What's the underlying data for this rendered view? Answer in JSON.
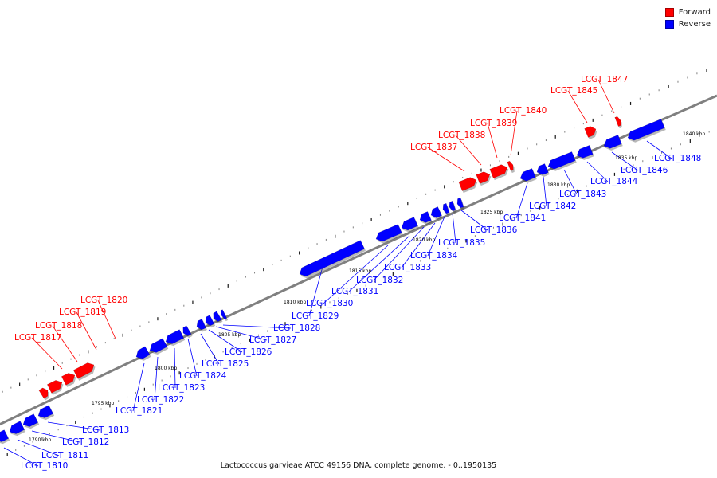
{
  "caption": "Lactococcus garvieae ATCC 49156 DNA, complete genome. - 0..1950135",
  "legend": [
    {
      "label": "Forward",
      "color": "#ff0000"
    },
    {
      "label": "Reverse",
      "color": "#0000ff"
    }
  ],
  "colors": {
    "forward": "#ff0000",
    "reverse": "#0000ff",
    "backbone": "#808080",
    "tick": "#000000"
  },
  "tick_labels": [
    "1790 kbp",
    "1795 kbp",
    "1800 kbp",
    "1805 kbp",
    "1810 kbp",
    "1815 kbp",
    "1820 kbp",
    "1825 kbp",
    "1830 kbp",
    "1835 kbp",
    "1840 kbp"
  ],
  "genes": [
    {
      "id": "LCGT_1810",
      "strand": "reverse"
    },
    {
      "id": "LCGT_1811",
      "strand": "reverse"
    },
    {
      "id": "LCGT_1812",
      "strand": "reverse"
    },
    {
      "id": "LCGT_1813",
      "strand": "reverse"
    },
    {
      "id": "LCGT_1817",
      "strand": "forward"
    },
    {
      "id": "LCGT_1818",
      "strand": "forward"
    },
    {
      "id": "LCGT_1819",
      "strand": "forward"
    },
    {
      "id": "LCGT_1820",
      "strand": "forward"
    },
    {
      "id": "LCGT_1821",
      "strand": "reverse"
    },
    {
      "id": "LCGT_1822",
      "strand": "reverse"
    },
    {
      "id": "LCGT_1823",
      "strand": "reverse"
    },
    {
      "id": "LCGT_1824",
      "strand": "reverse"
    },
    {
      "id": "LCGT_1825",
      "strand": "reverse"
    },
    {
      "id": "LCGT_1826",
      "strand": "reverse"
    },
    {
      "id": "LCGT_1827",
      "strand": "reverse"
    },
    {
      "id": "LCGT_1828",
      "strand": "reverse"
    },
    {
      "id": "LCGT_1829",
      "strand": "reverse"
    },
    {
      "id": "LCGT_1830",
      "strand": "reverse"
    },
    {
      "id": "LCGT_1831",
      "strand": "reverse"
    },
    {
      "id": "LCGT_1832",
      "strand": "reverse"
    },
    {
      "id": "LCGT_1833",
      "strand": "reverse"
    },
    {
      "id": "LCGT_1834",
      "strand": "reverse"
    },
    {
      "id": "LCGT_1835",
      "strand": "reverse"
    },
    {
      "id": "LCGT_1836",
      "strand": "reverse"
    },
    {
      "id": "LCGT_1837",
      "strand": "forward"
    },
    {
      "id": "LCGT_1838",
      "strand": "forward"
    },
    {
      "id": "LCGT_1839",
      "strand": "forward"
    },
    {
      "id": "LCGT_1840",
      "strand": "forward"
    },
    {
      "id": "LCGT_1841",
      "strand": "reverse"
    },
    {
      "id": "LCGT_1842",
      "strand": "reverse"
    },
    {
      "id": "LCGT_1843",
      "strand": "reverse"
    },
    {
      "id": "LCGT_1844",
      "strand": "reverse"
    },
    {
      "id": "LCGT_1845",
      "strand": "forward"
    },
    {
      "id": "LCGT_1846",
      "strand": "reverse"
    },
    {
      "id": "LCGT_1847",
      "strand": "forward"
    },
    {
      "id": "LCGT_1848",
      "strand": "reverse"
    }
  ]
}
